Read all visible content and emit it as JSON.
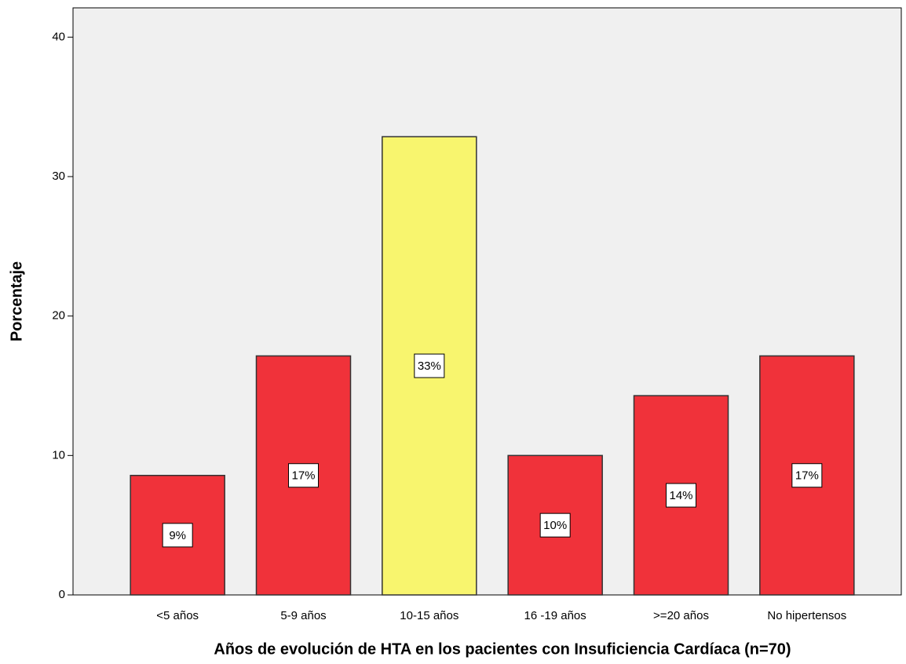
{
  "chart_data": {
    "type": "bar",
    "xlabel": "Años de evolución de HTA en los pacientes con Insuficiencia Cardíaca (n=70)",
    "ylabel": "Porcentaje",
    "categories": [
      "<5 años",
      "5-9 años",
      "10-15 años",
      "16 -19 años",
      ">=20 años",
      "No hipertensos"
    ],
    "values": [
      8.57,
      17.14,
      32.86,
      10,
      14.29,
      17.14
    ],
    "value_labels": [
      "9%",
      "17%",
      "33%",
      "10%",
      "14%",
      "17%"
    ],
    "colors": [
      "#f0323a",
      "#f0323a",
      "#f8f56e",
      "#f0323a",
      "#f0323a",
      "#f0323a"
    ],
    "ylim": [
      0,
      42.1
    ],
    "yticks": [
      0,
      10,
      20,
      30,
      40
    ],
    "grid": false
  }
}
